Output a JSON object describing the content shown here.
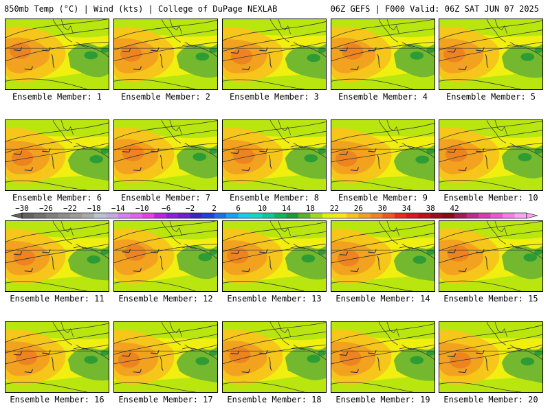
{
  "header": {
    "left": "850mb Temp (°C) | Wind (kts) | College of DuPage NEXLAB",
    "right": "06Z GEFS | F000 Valid: 06Z SAT JUN 07 2025"
  },
  "colors": {
    "panel_base": "#b9e60f",
    "warm_yellow": "#f0ef10",
    "orange_light": "#f6c61a",
    "orange": "#f2a21f",
    "orange_dark": "#ee8420",
    "green": "#73b82f",
    "green_dark": "#2e9c35",
    "contour": "#333333"
  },
  "members": [
    {
      "label": "Ensemble Member: 1"
    },
    {
      "label": "Ensemble Member: 2"
    },
    {
      "label": "Ensemble Member: 3"
    },
    {
      "label": "Ensemble Member: 4"
    },
    {
      "label": "Ensemble Member: 5"
    },
    {
      "label": "Ensemble Member: 6"
    },
    {
      "label": "Ensemble Member: 7"
    },
    {
      "label": "Ensemble Member: 8"
    },
    {
      "label": "Ensemble Member: 9"
    },
    {
      "label": "Ensemble Member: 10"
    },
    {
      "label": "Ensemble Member: 11"
    },
    {
      "label": "Ensemble Member: 12"
    },
    {
      "label": "Ensemble Member: 13"
    },
    {
      "label": "Ensemble Member: 14"
    },
    {
      "label": "Ensemble Member: 15"
    },
    {
      "label": "Ensemble Member: 16"
    },
    {
      "label": "Ensemble Member: 17"
    },
    {
      "label": "Ensemble Member: 18"
    },
    {
      "label": "Ensemble Member: 19"
    },
    {
      "label": "Ensemble Member: 20"
    }
  ],
  "colorbar": {
    "labels": [
      "−30",
      "−26",
      "−22",
      "−18",
      "−14",
      "−10",
      "−6",
      "−2",
      "2",
      "6",
      "10",
      "14",
      "18",
      "22",
      "26",
      "30",
      "34",
      "38",
      "42"
    ],
    "colors": [
      "#626262",
      "#707070",
      "#7f7f7f",
      "#8d8d8d",
      "#9b9b9b",
      "#a9a9a9",
      "#b7c4d0",
      "#c1a9e2",
      "#d282ee",
      "#e55ef0",
      "#e93ce7",
      "#bb23e3",
      "#8c1ee0",
      "#6a21cf",
      "#3d24c6",
      "#1f3fe0",
      "#1a70ec",
      "#14a2f1",
      "#1ac8eb",
      "#13d7c2",
      "#10c59a",
      "#10b45e",
      "#1c9b3b",
      "#5bb12d",
      "#a2d71d",
      "#e0f010",
      "#f6e810",
      "#f6c61a",
      "#f2a21f",
      "#ee8420",
      "#ea5a1f",
      "#e72b1d",
      "#d91624",
      "#bb1020",
      "#9c0c1b",
      "#8a0a1a",
      "#a31a56",
      "#c02a8a",
      "#d93bb1",
      "#ec55d4",
      "#f57be8",
      "#f9a2f0"
    ]
  }
}
